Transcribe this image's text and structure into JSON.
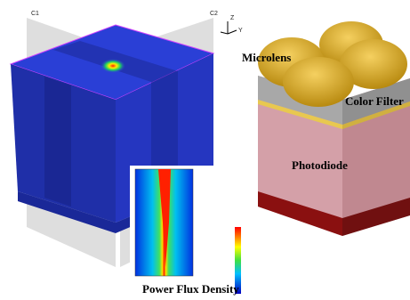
{
  "labels": {
    "c1": "C1",
    "c2": "C2",
    "axis_z": "Z",
    "axis_y": "Y",
    "microlens": "Microlens",
    "color_filter": "Color Filter",
    "photodiode": "Photodiode",
    "caption": "Power Flux Density"
  }
}
